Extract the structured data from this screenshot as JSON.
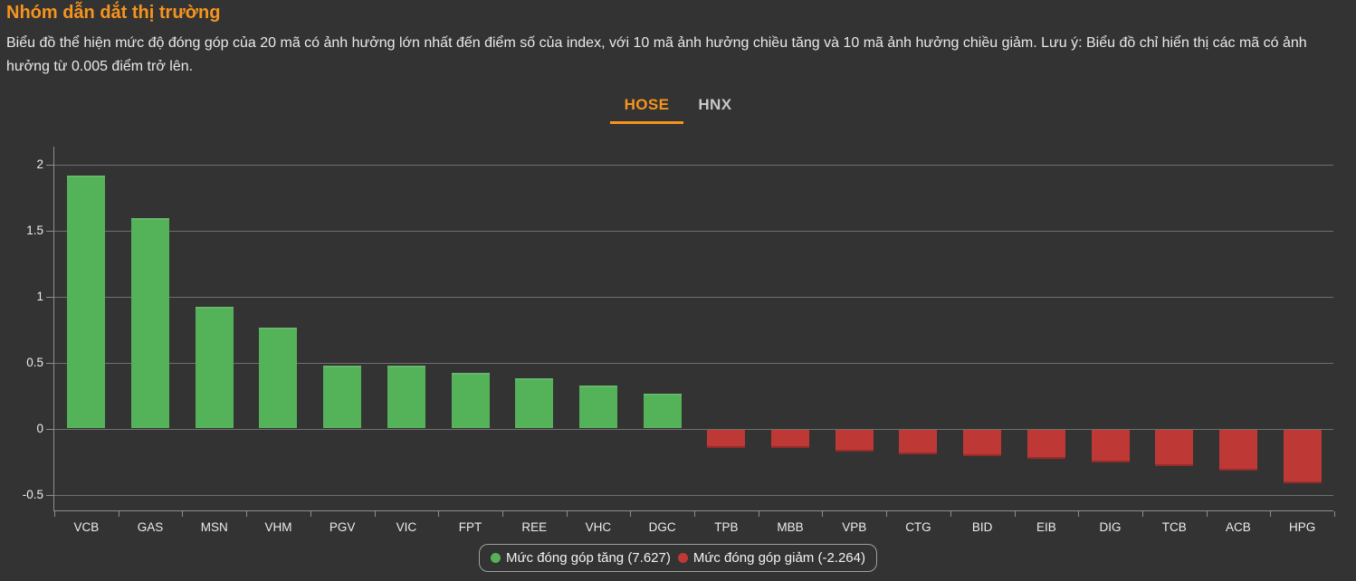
{
  "header": {
    "title": "Nhóm dẫn dắt thị trường",
    "description": "Biểu đồ thể hiện mức độ đóng góp của 20 mã có ảnh hưởng lớn nhất đến điểm số của index, với 10 mã ảnh hưởng chiều tăng và 10 mã ảnh hưởng chiều giảm. Lưu ý: Biểu đồ chỉ hiển thị các mã có ảnh hưởng từ 0.005 điểm trở lên."
  },
  "tabs": [
    {
      "label": "HOSE",
      "active": true
    },
    {
      "label": "HNX",
      "active": false
    }
  ],
  "colors": {
    "background": "#333333",
    "accent_orange": "#f7941e",
    "positive": "#54b259",
    "negative": "#be3935",
    "grid": "#6f6f6f",
    "axis": "#8e8e8e",
    "text": "#e9e9e9"
  },
  "chart_data": {
    "type": "bar",
    "title": "",
    "xlabel": "",
    "ylabel": "",
    "categories": [
      "VCB",
      "GAS",
      "MSN",
      "VHM",
      "PGV",
      "VIC",
      "FPT",
      "REE",
      "VHC",
      "DGC",
      "TPB",
      "MBB",
      "VPB",
      "CTG",
      "BID",
      "EIB",
      "DIG",
      "TCB",
      "ACB",
      "HPG"
    ],
    "values": [
      1.92,
      1.6,
      0.93,
      0.77,
      0.48,
      0.48,
      0.43,
      0.39,
      0.33,
      0.27,
      -0.14,
      -0.14,
      -0.17,
      -0.19,
      -0.2,
      -0.22,
      -0.25,
      -0.28,
      -0.31,
      -0.41
    ],
    "positive_color": "#54b259",
    "negative_color": "#be3935",
    "yticks": [
      2,
      1.5,
      1,
      0.5,
      0,
      -0.5
    ],
    "ytick_labels": [
      "2",
      "1.5",
      "1",
      "0.5",
      "0",
      "-0.5"
    ],
    "ylim": [
      -0.62,
      2.14
    ],
    "grid": true,
    "legend_position": "bottom",
    "legend": [
      {
        "label": "Mức đóng góp tăng (7.627)",
        "color": "#54b259"
      },
      {
        "label": "Mức đóng góp giảm (-2.264)",
        "color": "#be3935"
      }
    ]
  }
}
